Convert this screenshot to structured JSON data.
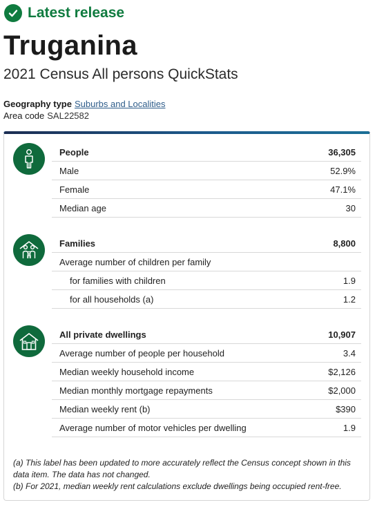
{
  "release": {
    "label": "Latest release",
    "icon": "check-circle-icon",
    "color": "#0f7b3f"
  },
  "page_title": "Truganina",
  "subtitle": "2021 Census All persons QuickStats",
  "geography": {
    "type_label": "Geography type",
    "type_value": "Suburbs and Localities",
    "code_label": "Area code",
    "code_value": "SAL22582"
  },
  "people": {
    "heading": "People",
    "total": "36,305",
    "rows": [
      {
        "label": "Male",
        "value": "52.9%"
      },
      {
        "label": "Female",
        "value": "47.1%"
      },
      {
        "label": "Median age",
        "value": "30"
      }
    ]
  },
  "families": {
    "heading": "Families",
    "total": "8,800",
    "rows": [
      {
        "label": "Average number of children per family",
        "value": ""
      },
      {
        "label": "for families with children",
        "value": "1.9"
      },
      {
        "label": "for all households (a)",
        "value": "1.2"
      }
    ]
  },
  "dwellings": {
    "heading": "All private dwellings",
    "total": "10,907",
    "rows": [
      {
        "label": "Average number of people per household",
        "value": "3.4"
      },
      {
        "label": "Median weekly household income",
        "value": "$2,126"
      },
      {
        "label": "Median monthly mortgage repayments",
        "value": "$2,000"
      },
      {
        "label": "Median weekly rent (b)",
        "value": "$390"
      },
      {
        "label": "Average number of motor vehicles per dwelling",
        "value": "1.9"
      }
    ]
  },
  "notes": [
    "(a) This label has been updated to more accurately reflect the Census concept shown in this data item. The data has not changed.",
    "(b) For 2021, median weekly rent calculations exclude dwellings being occupied rent-free."
  ],
  "colors": {
    "icon_bg": "#0f6a3c",
    "link": "#2d5c8a",
    "top_bar": "#1b4b7c"
  }
}
